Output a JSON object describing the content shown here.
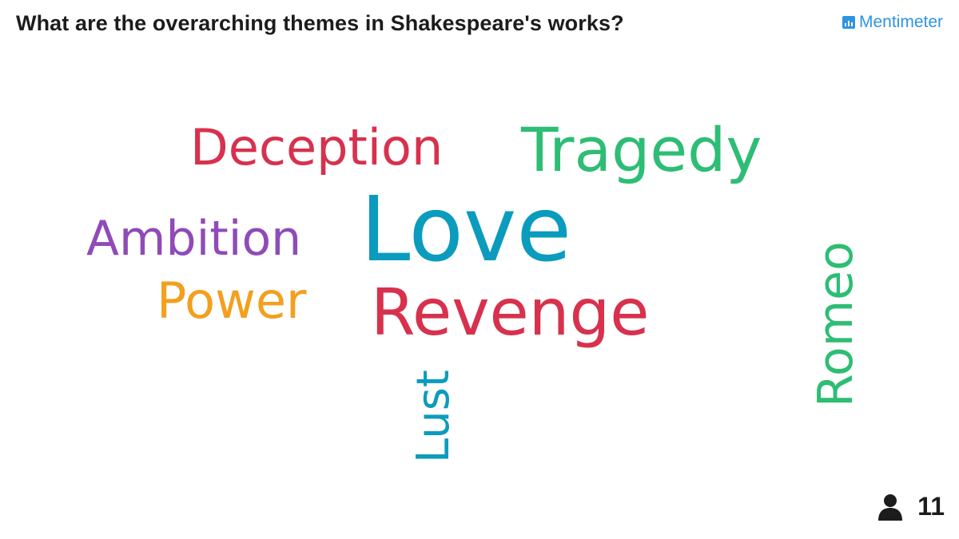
{
  "header": {
    "question": "What are the overarching themes in Shakespeare's works?",
    "brand": "Mentimeter"
  },
  "colors": {
    "red": "#d7314e",
    "green": "#2ebd74",
    "purple": "#8f4bb8",
    "blue": "#0b9cbd",
    "orange": "#f2a01e",
    "brand_blue": "#2f93e0"
  },
  "word_cloud": {
    "words": [
      {
        "text": "Deception",
        "color": "#d7314e"
      },
      {
        "text": "Tragedy",
        "color": "#2ebd74"
      },
      {
        "text": "Ambition",
        "color": "#8f4bb8"
      },
      {
        "text": "Love",
        "color": "#0b9cbd"
      },
      {
        "text": "Power",
        "color": "#f2a01e"
      },
      {
        "text": "Revenge",
        "color": "#d7314e"
      },
      {
        "text": "Lust",
        "color": "#0b9cbd"
      },
      {
        "text": "Romeo",
        "color": "#2ebd74"
      }
    ]
  },
  "footer": {
    "participant_icon": "person-icon",
    "participant_count": "11"
  }
}
